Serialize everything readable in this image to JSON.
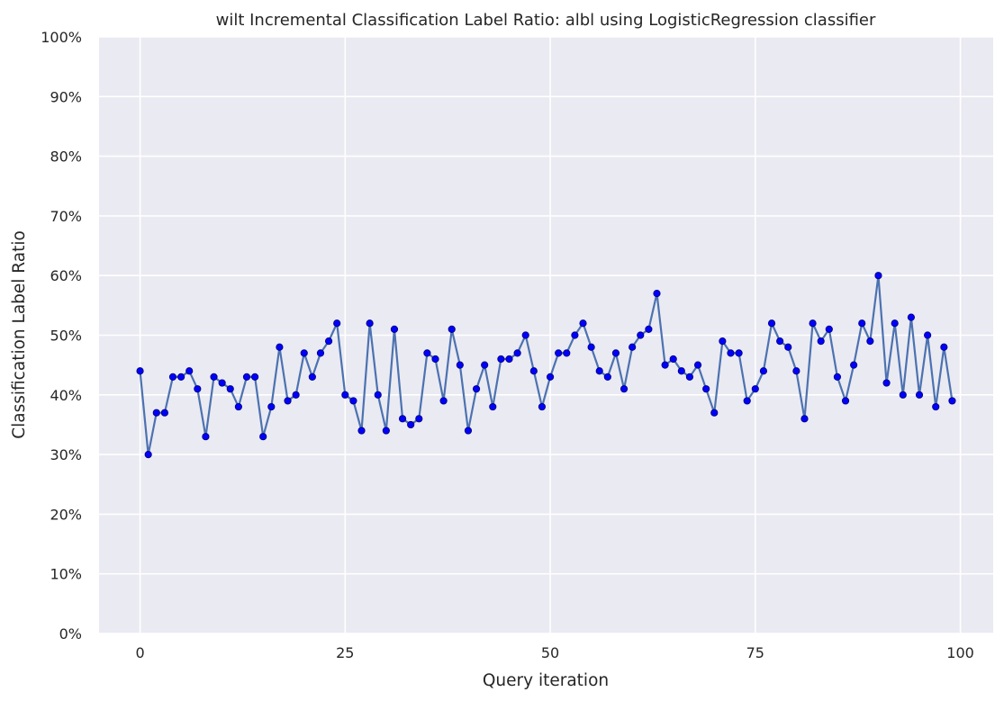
{
  "chart_data": {
    "type": "line",
    "title": "wilt Incremental Classification Label Ratio: albl using LogisticRegression classifier",
    "xlabel": "Query iteration",
    "ylabel": "Classification Label Ratio",
    "xlim": [
      -5,
      104
    ],
    "ylim": [
      0,
      100
    ],
    "x_ticks": [
      0,
      25,
      50,
      75,
      100
    ],
    "y_ticks": [
      0,
      10,
      20,
      30,
      40,
      50,
      60,
      70,
      80,
      90,
      100
    ],
    "y_tick_labels": [
      "0%",
      "10%",
      "20%",
      "30%",
      "40%",
      "50%",
      "60%",
      "70%",
      "80%",
      "90%",
      "100%"
    ],
    "grid": true,
    "background_color": "#eaeaf2",
    "grid_color": "#ffffff",
    "line_color": "#4c72b0",
    "marker_color": "#0000ff",
    "marker_edge_color": "#00008b",
    "series": [
      {
        "x": [
          0,
          1,
          2,
          3,
          4,
          5,
          6,
          7,
          8,
          9,
          10,
          11,
          12,
          13,
          14,
          15,
          16,
          17,
          18,
          19,
          20,
          21,
          22,
          23,
          24,
          25,
          26,
          27,
          28,
          29,
          30,
          31,
          32,
          33,
          34,
          35,
          36,
          37,
          38,
          39,
          40,
          41,
          42,
          43,
          44,
          45,
          46,
          47,
          48,
          49,
          50,
          51,
          52,
          53,
          54,
          55,
          56,
          57,
          58,
          59,
          60,
          61,
          62,
          63,
          64,
          65,
          66,
          67,
          68,
          69,
          70,
          71,
          72,
          73,
          74,
          75,
          76,
          77,
          78,
          79,
          80,
          81,
          82,
          83,
          84,
          85,
          86,
          87,
          88,
          89,
          90,
          91,
          92,
          93,
          94,
          95,
          96,
          97,
          98,
          99
        ],
        "values": [
          44,
          30,
          37,
          37,
          43,
          43,
          44,
          41,
          33,
          43,
          42,
          41,
          38,
          43,
          43,
          33,
          38,
          48,
          39,
          40,
          47,
          43,
          47,
          49,
          52,
          40,
          39,
          34,
          52,
          40,
          34,
          51,
          36,
          35,
          36,
          47,
          46,
          39,
          51,
          45,
          34,
          41,
          45,
          38,
          46,
          46,
          47,
          50,
          44,
          38,
          43,
          47,
          47,
          50,
          52,
          48,
          44,
          43,
          47,
          41,
          48,
          50,
          51,
          57,
          45,
          46,
          44,
          43,
          45,
          41,
          37,
          49,
          47,
          47,
          39,
          41,
          44,
          52,
          49,
          48,
          44,
          36,
          52,
          49,
          51,
          43,
          39,
          45,
          52,
          49,
          60,
          42,
          52,
          40,
          53,
          40,
          50,
          38,
          48,
          39
        ]
      }
    ]
  }
}
